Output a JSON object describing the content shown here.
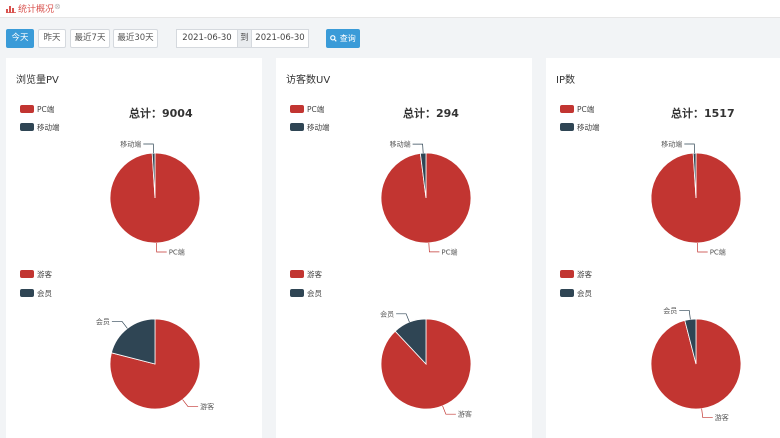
{
  "header": {
    "breadcrumb": "统计概况",
    "close": "⊗"
  },
  "filters": {
    "today": "今天",
    "yesterday": "昨天",
    "last7": "最近7天",
    "last30": "最近30天",
    "start_date": "2021-06-30",
    "to_label": "到",
    "end_date": "2021-06-30",
    "query_label": "查询"
  },
  "colors": {
    "primary": "#c23531",
    "secondary": "#2f4554",
    "accent": "#3a9bd8"
  },
  "panels": [
    {
      "title": "浏览量PV",
      "total_prefix": "总计：",
      "total_value": "9004",
      "device_legend": [
        "PC端",
        "移动端"
      ],
      "user_legend": [
        "游客",
        "会员"
      ]
    },
    {
      "title": "访客数UV",
      "total_prefix": "总计：",
      "total_value": "294",
      "device_legend": [
        "PC端",
        "移动端"
      ],
      "user_legend": [
        "游客",
        "会员"
      ]
    },
    {
      "title": "IP数",
      "total_prefix": "总计：",
      "total_value": "1517",
      "device_legend": [
        "PC端",
        "移动端"
      ],
      "user_legend": [
        "游客",
        "会员"
      ]
    }
  ],
  "chart_data": [
    {
      "type": "pie",
      "labels": [
        "PC端",
        "移动端"
      ],
      "values": [
        0.99,
        0.01
      ]
    },
    {
      "type": "pie",
      "labels": [
        "游客",
        "会员"
      ],
      "values": [
        0.79,
        0.21
      ]
    },
    {
      "type": "pie",
      "labels": [
        "PC端",
        "移动端"
      ],
      "values": [
        0.98,
        0.02
      ]
    },
    {
      "type": "pie",
      "labels": [
        "游客",
        "会员"
      ],
      "values": [
        0.88,
        0.12
      ]
    },
    {
      "type": "pie",
      "labels": [
        "PC端",
        "移动端"
      ],
      "values": [
        0.99,
        0.01
      ]
    },
    {
      "type": "pie",
      "labels": [
        "游客",
        "会员"
      ],
      "values": [
        0.96,
        0.04
      ]
    }
  ]
}
